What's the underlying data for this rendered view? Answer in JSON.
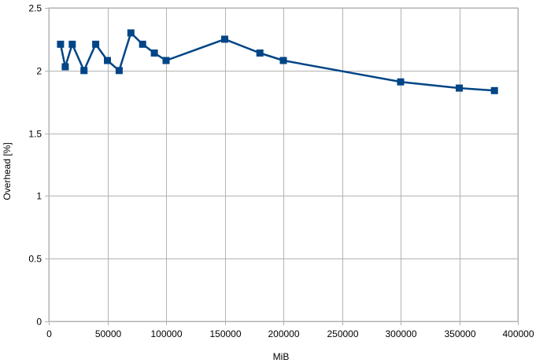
{
  "chart_data": {
    "type": "line",
    "title": "",
    "xlabel": "MiB",
    "ylabel": "Overhead [%]",
    "xlim": [
      0,
      400000
    ],
    "ylim": [
      0,
      2.5
    ],
    "xticks": [
      0,
      50000,
      100000,
      150000,
      200000,
      250000,
      300000,
      350000,
      400000
    ],
    "yticks": [
      0,
      0.5,
      1,
      1.5,
      2,
      2.5
    ],
    "xtick_labels": [
      "0",
      "50000",
      "100000",
      "150000",
      "200000",
      "250000",
      "300000",
      "350000",
      "400000"
    ],
    "ytick_labels": [
      "0",
      "0.5",
      "1",
      "1.5",
      "2",
      "2.5"
    ],
    "grid": true,
    "legend": "none",
    "series": [
      {
        "color": "#004586",
        "marker": "square",
        "x": [
          10000,
          14000,
          20000,
          30000,
          40000,
          50000,
          60000,
          70000,
          80000,
          90000,
          100000,
          150000,
          180000,
          200000,
          300000,
          350000,
          380000
        ],
        "y": [
          2.21,
          2.03,
          2.21,
          2.0,
          2.21,
          2.08,
          2.0,
          2.3,
          2.21,
          2.14,
          2.08,
          2.25,
          2.14,
          2.08,
          1.91,
          1.86,
          1.84
        ]
      }
    ]
  }
}
